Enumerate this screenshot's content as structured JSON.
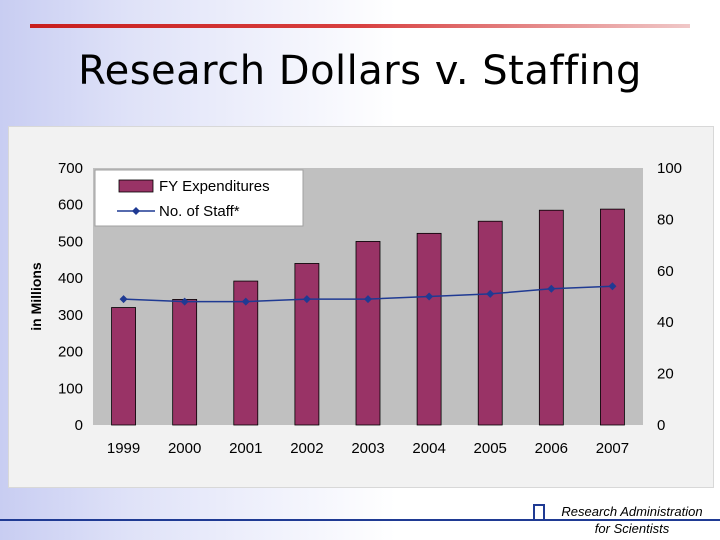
{
  "slide": {
    "title": "Research Dollars v. Staffing",
    "footer_line1": "Research Administration",
    "footer_line2": "for Scientists"
  },
  "chart_data": {
    "type": "bar",
    "categories": [
      "1999",
      "2000",
      "2001",
      "2002",
      "2003",
      "2004",
      "2005",
      "2006",
      "2007"
    ],
    "series": [
      {
        "name": "FY Expenditures",
        "type": "bar",
        "axis": "left",
        "values": [
          320,
          342,
          392,
          440,
          500,
          522,
          555,
          585,
          588
        ],
        "color": "#993366"
      },
      {
        "name": "No. of Staff*",
        "type": "line",
        "axis": "right",
        "values": [
          49,
          48,
          48,
          49,
          49,
          50,
          51,
          53,
          54
        ],
        "color": "#1f3a93"
      }
    ],
    "ylabel": "in Millions",
    "ylim": [
      0,
      700
    ],
    "yticks": [
      "0",
      "100",
      "200",
      "300",
      "400",
      "500",
      "600",
      "700"
    ],
    "y2lim": [
      0,
      100
    ],
    "y2ticks": [
      "0",
      "20",
      "40",
      "60",
      "80",
      "100"
    ],
    "legend_position": "top-left",
    "grid": false,
    "plot_background": "#c0c0c0"
  }
}
